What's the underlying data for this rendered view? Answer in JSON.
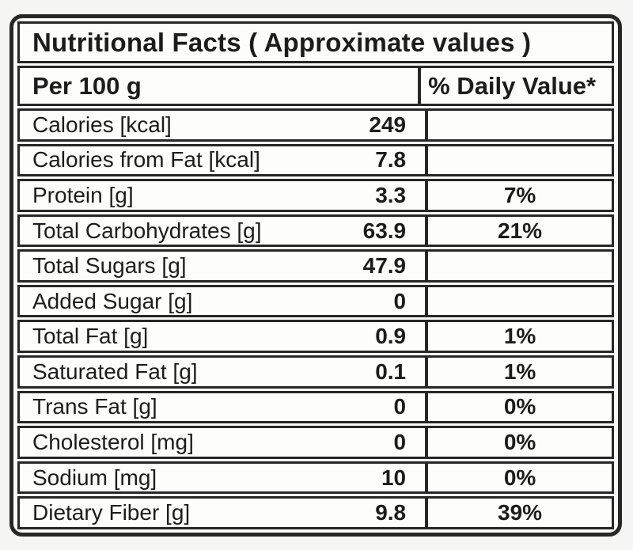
{
  "title": "Nutritional Facts ( Approximate values )",
  "columns": {
    "serving": "Per 100 g",
    "daily_value": "% Daily Value*"
  },
  "rows": [
    {
      "label": "Calories [kcal]",
      "value": "249",
      "dv": ""
    },
    {
      "label": "Calories from Fat [kcal]",
      "value": "7.8",
      "dv": ""
    },
    {
      "label": "Protein [g]",
      "value": "3.3",
      "dv": "7%"
    },
    {
      "label": "Total Carbohydrates [g]",
      "value": "63.9",
      "dv": "21%"
    },
    {
      "label": "Total Sugars [g]",
      "value": "47.9",
      "dv": ""
    },
    {
      "label": "Added Sugar [g]",
      "value": "0",
      "dv": ""
    },
    {
      "label": "Total Fat [g]",
      "value": "0.9",
      "dv": "1%"
    },
    {
      "label": "Saturated Fat [g]",
      "value": "0.1",
      "dv": "1%"
    },
    {
      "label": "Trans Fat [g]",
      "value": "0",
      "dv": "0%"
    },
    {
      "label": "Cholesterol [mg]",
      "value": "0",
      "dv": "0%"
    },
    {
      "label": "Sodium [mg]",
      "value": "10",
      "dv": "0%"
    },
    {
      "label": "Dietary Fiber [g]",
      "value": "9.8",
      "dv": "39%"
    }
  ],
  "colors": {
    "border": "#272727",
    "text": "#1c1c1c",
    "page_background": "#f5f5f4",
    "cell_background": "#fdfdfc"
  }
}
